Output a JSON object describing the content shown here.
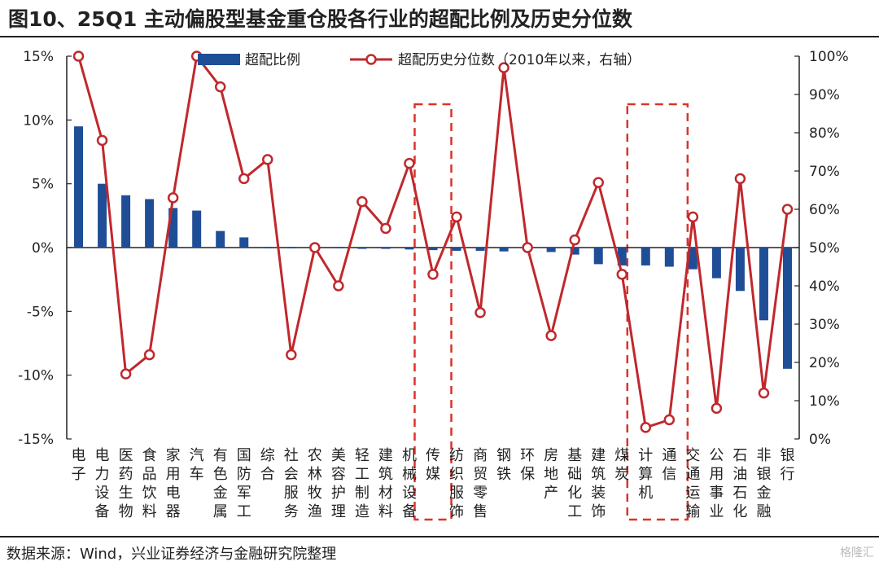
{
  "title": "图10、25Q1 主动偏股型基金重仓股各行业的超配比例及历史分位数",
  "source": "数据来源：Wind，兴业证券经济与金融研究院整理",
  "watermark": "格隆汇",
  "colors": {
    "bar": "#1f4e96",
    "line": "#c0282d",
    "highlight": "#d9342b"
  },
  "chart_data": {
    "type": "bar",
    "categories": [
      "电子",
      "电力设备",
      "医药生物",
      "食品饮料",
      "家用电器",
      "汽车",
      "有色金属",
      "国防军工",
      "综合",
      "社会服务",
      "农林牧渔",
      "美容护理",
      "轻工制造",
      "建筑材料",
      "机械设备",
      "传媒",
      "纺织服饰",
      "商贸零售",
      "钢铁",
      "环保",
      "房地产",
      "基础化工",
      "建筑装饰",
      "煤炭",
      "计算机",
      "通信",
      "交通运输",
      "公用事业",
      "石油石化",
      "非银金融",
      "银行"
    ],
    "series": [
      {
        "name": "超配比例",
        "type": "bar",
        "axis": "left",
        "values": [
          9.5,
          5.0,
          4.1,
          3.8,
          3.1,
          2.9,
          1.3,
          0.8,
          0.0,
          0.0,
          0.0,
          0.0,
          -0.1,
          -0.1,
          -0.15,
          -0.2,
          -0.25,
          -0.25,
          -0.3,
          -0.1,
          -0.35,
          -0.55,
          -1.3,
          -1.4,
          -1.4,
          -1.5,
          -1.7,
          -2.4,
          -3.4,
          -5.7,
          -9.5
        ]
      },
      {
        "name": "超配历史分位数（2010年以来，右轴）",
        "type": "line",
        "axis": "right",
        "values": [
          100,
          78,
          17,
          22,
          63,
          100,
          92,
          68,
          73,
          22,
          50,
          40,
          62,
          55,
          72,
          43,
          58,
          33,
          97,
          50,
          27,
          52,
          67,
          43,
          3,
          5,
          58,
          8,
          68,
          12,
          60
        ]
      }
    ],
    "y_left": {
      "min": -15,
      "max": 15,
      "ticks": [
        "15%",
        "10%",
        "5%",
        "0%",
        "-5%",
        "-10%",
        "-15%"
      ],
      "tick_values": [
        15,
        10,
        5,
        0,
        -5,
        -10,
        -15
      ]
    },
    "y_right": {
      "min": 0,
      "max": 100,
      "ticks": [
        "100%",
        "90%",
        "80%",
        "70%",
        "60%",
        "50%",
        "40%",
        "30%",
        "20%",
        "10%",
        "0%"
      ],
      "tick_values": [
        100,
        90,
        80,
        70,
        60,
        50,
        40,
        30,
        20,
        10,
        0
      ]
    },
    "highlights": [
      [
        "传媒"
      ],
      [
        "计算机",
        "通信"
      ]
    ],
    "legend_position": "top"
  }
}
